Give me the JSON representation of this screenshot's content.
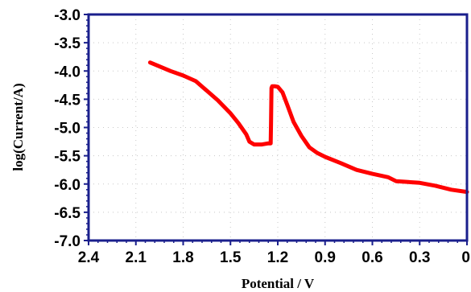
{
  "chart_data": {
    "type": "line",
    "title": "",
    "xlabel": "Potential / V",
    "ylabel": "log(Current/A)",
    "x_reversed": true,
    "xlim": [
      2.4,
      0
    ],
    "ylim": [
      -7.0,
      -3.0
    ],
    "xticks": [
      2.4,
      2.1,
      1.8,
      1.5,
      1.2,
      0.9,
      0.6,
      0.3,
      0
    ],
    "xtick_labels": [
      "2.4",
      "2.1",
      "1.8",
      "1.5",
      "1.2",
      "0.9",
      "0.6",
      "0.3",
      "0"
    ],
    "yticks": [
      -3.0,
      -3.5,
      -4.0,
      -4.5,
      -5.0,
      -5.5,
      -6.0,
      -6.5,
      -7.0
    ],
    "ytick_labels": [
      "-3.0",
      "-3.5",
      "-4.0",
      "-4.5",
      "-5.0",
      "-5.5",
      "-6.0",
      "-6.5",
      "-7.0"
    ],
    "grid": true,
    "legend": "none",
    "colors": {
      "axis": "#1a1f8c",
      "series": "#ff0000",
      "grid": "#c8c8c8"
    },
    "series": [
      {
        "name": "",
        "x": [
          2.01,
          1.95,
          1.88,
          1.8,
          1.72,
          1.65,
          1.58,
          1.5,
          1.45,
          1.4,
          1.38,
          1.35,
          1.3,
          1.26,
          1.245,
          1.243,
          1.24,
          1.235,
          1.22,
          1.2,
          1.17,
          1.14,
          1.1,
          1.05,
          1.0,
          0.95,
          0.9,
          0.8,
          0.7,
          0.6,
          0.5,
          0.45,
          0.4,
          0.3,
          0.2,
          0.1,
          0.0
        ],
        "y": [
          -3.85,
          -3.92,
          -4.0,
          -4.08,
          -4.18,
          -4.35,
          -4.52,
          -4.75,
          -4.92,
          -5.12,
          -5.25,
          -5.3,
          -5.3,
          -5.28,
          -5.28,
          -4.95,
          -4.3,
          -4.27,
          -4.27,
          -4.28,
          -4.38,
          -4.6,
          -4.9,
          -5.15,
          -5.35,
          -5.45,
          -5.52,
          -5.63,
          -5.75,
          -5.82,
          -5.88,
          -5.95,
          -5.96,
          -5.98,
          -6.03,
          -6.1,
          -6.14
        ]
      }
    ]
  }
}
